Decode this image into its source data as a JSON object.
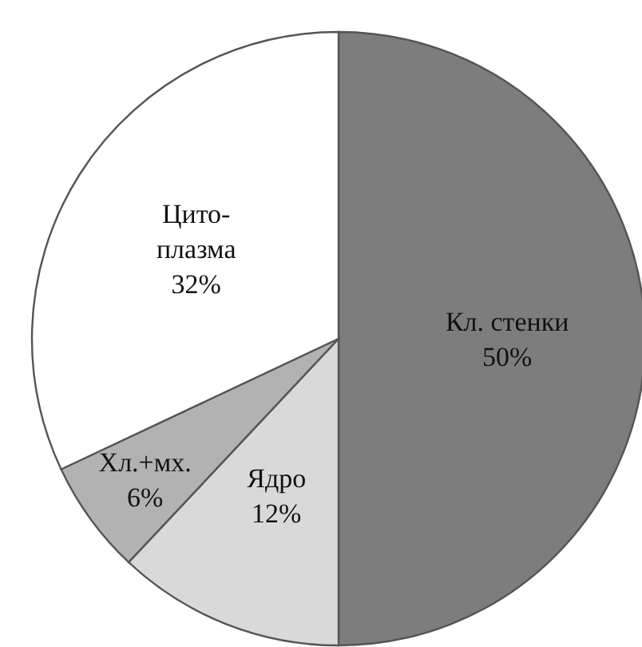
{
  "chart_data": {
    "type": "pie",
    "categories": [
      "Кл. стенки",
      "Ядро",
      "Хл.+мх.",
      "Цито-\nплазма"
    ],
    "values": [
      50,
      12,
      6,
      32
    ],
    "colors": [
      "#7d7d7d",
      "#d9d9d9",
      "#b2b2b2",
      "#ffffff"
    ],
    "value_labels": [
      "50%",
      "12%",
      "6%",
      "32%"
    ]
  }
}
